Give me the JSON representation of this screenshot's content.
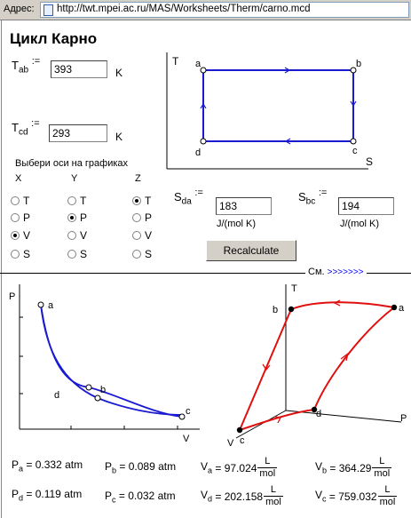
{
  "address_bar": {
    "label": "Адрес:",
    "url": "http://twt.mpei.ac.ru/MAS/Worksheets/Therm/carno.mcd"
  },
  "title": "Цикл Карно",
  "inputs": {
    "tab": {
      "label": "T",
      "sub": "ab",
      "assign": ":=",
      "value": "393",
      "unit": "K"
    },
    "tcd": {
      "label": "T",
      "sub": "cd",
      "assign": ":=",
      "value": "293",
      "unit": "K"
    },
    "sda": {
      "label": "S",
      "sub": "da",
      "assign": ":=",
      "value": "183",
      "unit": "J/(mol K)"
    },
    "sbc": {
      "label": "S",
      "sub": "bc",
      "assign": ":=",
      "value": "194",
      "unit": "J/(mol K)"
    }
  },
  "axes_prompt": "Выбери оси на графиках",
  "axis_groups": {
    "x": {
      "header": "X",
      "options": [
        "T",
        "P",
        "V",
        "S"
      ],
      "selected": "V"
    },
    "y": {
      "header": "Y",
      "options": [
        "T",
        "P",
        "V",
        "S"
      ],
      "selected": "P"
    },
    "z": {
      "header": "Z",
      "options": [
        "T",
        "P",
        "V",
        "S"
      ],
      "selected": "T"
    }
  },
  "recalculate_label": "Recalculate",
  "see_label": "См.",
  "see_arrows": ">>>>>>>",
  "ts_plot": {
    "y_axis": "T",
    "x_axis": "S",
    "points": {
      "a": "a",
      "b": "b",
      "c": "c",
      "d": "d"
    }
  },
  "pv_plot": {
    "y_axis": "P",
    "x_axis": "V",
    "points": {
      "a": "a",
      "b": "b",
      "c": "c",
      "d": "d"
    }
  },
  "plot3d": {
    "axis_t": "T",
    "axis_p": "P",
    "axis_v": "V",
    "points": {
      "a": "a",
      "b": "b",
      "c": "c",
      "d": "d"
    }
  },
  "results": {
    "pa": {
      "label": "P",
      "sub": "a",
      "text": "= 0.332 atm"
    },
    "pb": {
      "label": "P",
      "sub": "b",
      "text": "= 0.089 atm"
    },
    "pd": {
      "label": "P",
      "sub": "d",
      "text": "= 0.119 atm"
    },
    "pc": {
      "label": "P",
      "sub": "c",
      "text": "= 0.032 atm"
    },
    "va": {
      "label": "V",
      "sub": "a",
      "text": "= 97.024",
      "unit_num": "L",
      "unit_den": "mol"
    },
    "vb": {
      "label": "V",
      "sub": "b",
      "text": "= 364.29",
      "unit_num": "L",
      "unit_den": "mol"
    },
    "vd": {
      "label": "V",
      "sub": "d",
      "text": "= 202.158",
      "unit_num": "L",
      "unit_den": "mol"
    },
    "vc": {
      "label": "V",
      "sub": "c",
      "text": "= 759.032",
      "unit_num": "L",
      "unit_den": "mol"
    }
  },
  "colors": {
    "cycle_blue": "#1a1ad0",
    "cycle_red": "#e01010",
    "link_blue": "#0000ff"
  }
}
